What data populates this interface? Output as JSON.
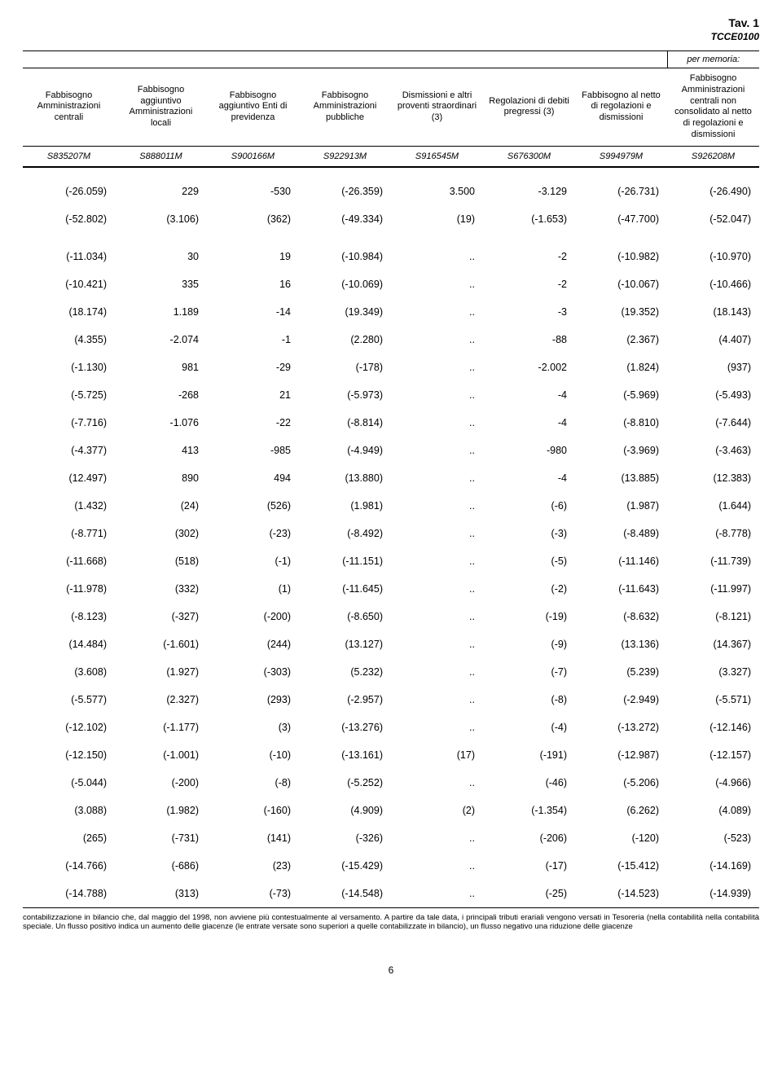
{
  "title": "Tav. 1",
  "subtitle": "TCCE0100",
  "memoria_label": "per memoria:",
  "columns": [
    "Fabbisogno Amministrazioni centrali",
    "Fabbisogno aggiuntivo Amministrazioni locali",
    "Fabbisogno aggiuntivo Enti di previdenza",
    "Fabbisogno Amministrazioni pubbliche",
    "Dismissioni e altri proventi straordinari (3)",
    "Regolazioni di debiti pregressi (3)",
    "Fabbisogno al netto di regolazioni e dismissioni",
    "Fabbisogno Amministrazioni centrali non consolidato al netto di regolazioni e dismissioni"
  ],
  "codes": [
    "S835207M",
    "S888011M",
    "S900166M",
    "S922913M",
    "S916545M",
    "S676300M",
    "S994979M",
    "S926208M"
  ],
  "rows": [
    {
      "gap": false,
      "cells": [
        "(-26.059)",
        "229",
        "-530",
        "(-26.359)",
        "3.500",
        "-3.129",
        "(-26.731)",
        "(-26.490)"
      ]
    },
    {
      "gap": false,
      "cells": [
        "(-52.802)",
        "(3.106)",
        "(362)",
        "(-49.334)",
        "(19)",
        "(-1.653)",
        "(-47.700)",
        "(-52.047)"
      ]
    },
    {
      "gap": true,
      "cells": [
        "(-11.034)",
        "30",
        "19",
        "(-10.984)",
        "..",
        "-2",
        "(-10.982)",
        "(-10.970)"
      ]
    },
    {
      "gap": false,
      "cells": [
        "(-10.421)",
        "335",
        "16",
        "(-10.069)",
        "..",
        "-2",
        "(-10.067)",
        "(-10.466)"
      ]
    },
    {
      "gap": false,
      "cells": [
        "(18.174)",
        "1.189",
        "-14",
        "(19.349)",
        "..",
        "-3",
        "(19.352)",
        "(18.143)"
      ]
    },
    {
      "gap": false,
      "cells": [
        "(4.355)",
        "-2.074",
        "-1",
        "(2.280)",
        "..",
        "-88",
        "(2.367)",
        "(4.407)"
      ]
    },
    {
      "gap": false,
      "cells": [
        "(-1.130)",
        "981",
        "-29",
        "(-178)",
        "..",
        "-2.002",
        "(1.824)",
        "(937)"
      ]
    },
    {
      "gap": false,
      "cells": [
        "(-5.725)",
        "-268",
        "21",
        "(-5.973)",
        "..",
        "-4",
        "(-5.969)",
        "(-5.493)"
      ]
    },
    {
      "gap": false,
      "cells": [
        "(-7.716)",
        "-1.076",
        "-22",
        "(-8.814)",
        "..",
        "-4",
        "(-8.810)",
        "(-7.644)"
      ]
    },
    {
      "gap": false,
      "cells": [
        "(-4.377)",
        "413",
        "-985",
        "(-4.949)",
        "..",
        "-980",
        "(-3.969)",
        "(-3.463)"
      ]
    },
    {
      "gap": false,
      "cells": [
        "(12.497)",
        "890",
        "494",
        "(13.880)",
        "..",
        "-4",
        "(13.885)",
        "(12.383)"
      ]
    },
    {
      "gap": false,
      "cells": [
        "(1.432)",
        "(24)",
        "(526)",
        "(1.981)",
        "..",
        "(-6)",
        "(1.987)",
        "(1.644)"
      ]
    },
    {
      "gap": false,
      "cells": [
        "(-8.771)",
        "(302)",
        "(-23)",
        "(-8.492)",
        "..",
        "(-3)",
        "(-8.489)",
        "(-8.778)"
      ]
    },
    {
      "gap": false,
      "cells": [
        "(-11.668)",
        "(518)",
        "(-1)",
        "(-11.151)",
        "..",
        "(-5)",
        "(-11.146)",
        "(-11.739)"
      ]
    },
    {
      "gap": false,
      "cells": [
        "(-11.978)",
        "(332)",
        "(1)",
        "(-11.645)",
        "..",
        "(-2)",
        "(-11.643)",
        "(-11.997)"
      ]
    },
    {
      "gap": false,
      "cells": [
        "(-8.123)",
        "(-327)",
        "(-200)",
        "(-8.650)",
        "..",
        "(-19)",
        "(-8.632)",
        "(-8.121)"
      ]
    },
    {
      "gap": false,
      "cells": [
        "(14.484)",
        "(-1.601)",
        "(244)",
        "(13.127)",
        "..",
        "(-9)",
        "(13.136)",
        "(14.367)"
      ]
    },
    {
      "gap": false,
      "cells": [
        "(3.608)",
        "(1.927)",
        "(-303)",
        "(5.232)",
        "..",
        "(-7)",
        "(5.239)",
        "(3.327)"
      ]
    },
    {
      "gap": false,
      "cells": [
        "(-5.577)",
        "(2.327)",
        "(293)",
        "(-2.957)",
        "..",
        "(-8)",
        "(-2.949)",
        "(-5.571)"
      ]
    },
    {
      "gap": false,
      "cells": [
        "(-12.102)",
        "(-1.177)",
        "(3)",
        "(-13.276)",
        "..",
        "(-4)",
        "(-13.272)",
        "(-12.146)"
      ]
    },
    {
      "gap": false,
      "cells": [
        "(-12.150)",
        "(-1.001)",
        "(-10)",
        "(-13.161)",
        "(17)",
        "(-191)",
        "(-12.987)",
        "(-12.157)"
      ]
    },
    {
      "gap": false,
      "cells": [
        "(-5.044)",
        "(-200)",
        "(-8)",
        "(-5.252)",
        "..",
        "(-46)",
        "(-5.206)",
        "(-4.966)"
      ]
    },
    {
      "gap": false,
      "cells": [
        "(3.088)",
        "(1.982)",
        "(-160)",
        "(4.909)",
        "(2)",
        "(-1.354)",
        "(6.262)",
        "(4.089)"
      ]
    },
    {
      "gap": false,
      "cells": [
        "(265)",
        "(-731)",
        "(141)",
        "(-326)",
        "..",
        "(-206)",
        "(-120)",
        "(-523)"
      ]
    },
    {
      "gap": false,
      "cells": [
        "(-14.766)",
        "(-686)",
        "(23)",
        "(-15.429)",
        "..",
        "(-17)",
        "(-15.412)",
        "(-14.169)"
      ]
    },
    {
      "gap": false,
      "cells": [
        "(-14.788)",
        "(313)",
        "(-73)",
        "(-14.548)",
        "..",
        "(-25)",
        "(-14.523)",
        "(-14.939)"
      ]
    }
  ],
  "footnote": "contabilizzazione in bilancio che, dal maggio del 1998, non avviene più contestualmente al versamento. A partire da tale data, i principali tributi erariali vengono versati in Tesoreria (nella contabilità nella contabilità speciale. Un flusso positivo indica un aumento delle giacenze (le entrate versate sono superiori a quelle contabilizzate in bilancio), un flusso negativo una riduzione delle giacenze",
  "page_number": "6"
}
